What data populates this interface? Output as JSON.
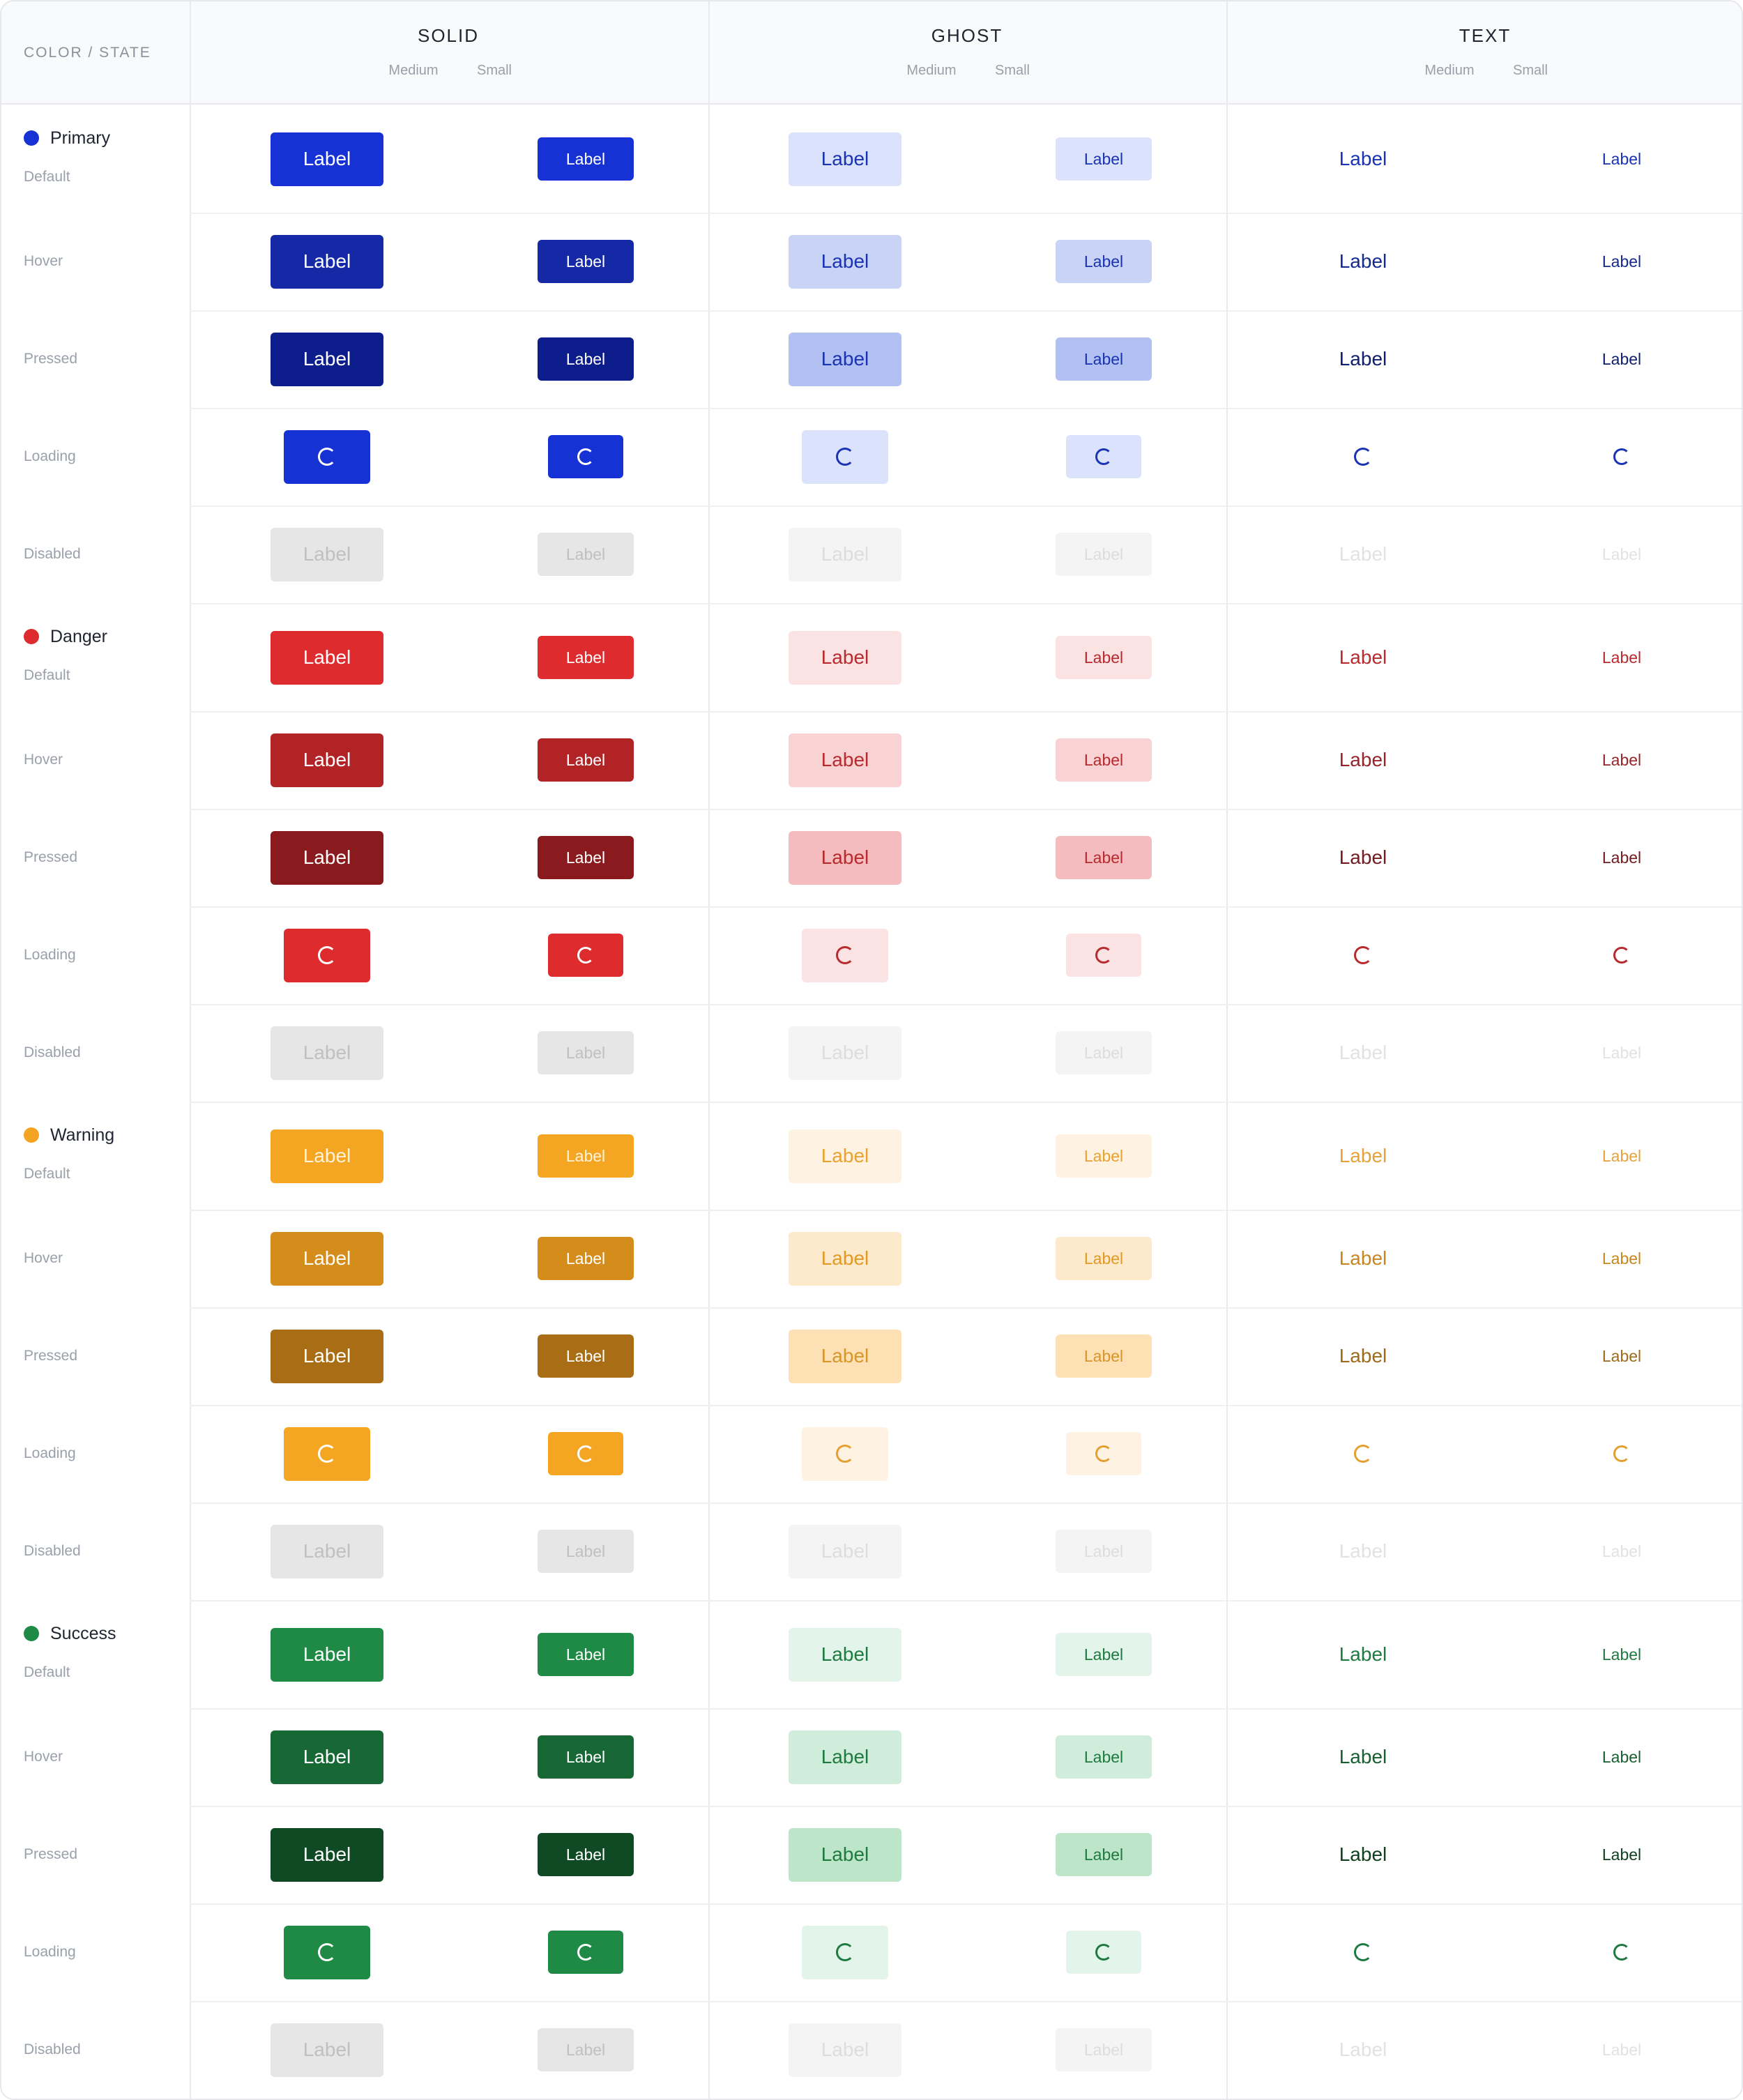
{
  "header": {
    "corner_label": "COLOR / STATE",
    "groups": [
      {
        "title": "SOLID",
        "sizes": [
          "Medium",
          "Small"
        ]
      },
      {
        "title": "GHOST",
        "sizes": [
          "Medium",
          "Small"
        ]
      },
      {
        "title": "TEXT",
        "sizes": [
          "Medium",
          "Small"
        ]
      }
    ]
  },
  "button_label": "Label",
  "states": [
    "Default",
    "Hover",
    "Pressed",
    "Loading",
    "Disabled"
  ],
  "colors": [
    {
      "name": "Primary",
      "dot": "#1632d4",
      "solid_bg": [
        "#1632d4",
        "#1529a6",
        "#0d1d8c",
        "#1632d4",
        "#e6e6e6"
      ],
      "solid_fg": [
        "#ffffff",
        "#ffffff",
        "#ffffff",
        "#ffffff",
        "#c0c0c0"
      ],
      "ghost_bg": [
        "#dbe2fb",
        "#c9d3f6",
        "#b2c1f2",
        "#dbe2fb",
        "#f4f4f4"
      ],
      "ghost_fg": [
        "#1a33b4",
        "#1a33b4",
        "#1a33b4",
        "#1a33b4",
        "#dddddd"
      ],
      "text_fg": [
        "#1a33b4",
        "#152a8f",
        "#0f1f6e",
        "#1a33b4",
        "#e2e2e2"
      ]
    },
    {
      "name": "Danger",
      "dot": "#de2b2e",
      "solid_bg": [
        "#de2b2e",
        "#b22326",
        "#8a1a1d",
        "#de2b2e",
        "#e6e6e6"
      ],
      "solid_fg": [
        "#ffffff",
        "#ffffff",
        "#ffffff",
        "#ffffff",
        "#c0c0c0"
      ],
      "ghost_bg": [
        "#fbe3e3",
        "#f9d2d3",
        "#f4bcbe",
        "#fbe3e3",
        "#f4f4f4"
      ],
      "ghost_fg": [
        "#b82a2d",
        "#b82a2d",
        "#b82a2d",
        "#b82a2d",
        "#dddddd"
      ],
      "text_fg": [
        "#b82a2d",
        "#97242a",
        "#731b1f",
        "#b82a2d",
        "#e2e2e2"
      ]
    },
    {
      "name": "Warning",
      "dot": "#f4a322",
      "solid_bg": [
        "#f4a623",
        "#d48c1b",
        "#a86d15",
        "#f4a623",
        "#e6e6e6"
      ],
      "solid_fg": [
        "#fff3dc",
        "#ffffff",
        "#ffffff",
        "#ffffff",
        "#c0c0c0"
      ],
      "ghost_bg": [
        "#fef3e3",
        "#fde9cc",
        "#fde0b4",
        "#fef3e3",
        "#f4f4f4"
      ],
      "ghost_fg": [
        "#eaa12f",
        "#e29a25",
        "#d8952a",
        "#e3a031",
        "#dddddd"
      ],
      "text_fg": [
        "#e6a33a",
        "#c8871e",
        "#9c6a1b",
        "#e3a031",
        "#e2e2e2"
      ]
    },
    {
      "name": "Success",
      "dot": "#1f8a45",
      "solid_bg": [
        "#1f8a45",
        "#186836",
        "#0f4a25",
        "#1f8a45",
        "#e6e6e6"
      ],
      "solid_fg": [
        "#ffffff",
        "#ffffff",
        "#ffffff",
        "#ffffff",
        "#c0c0c0"
      ],
      "ghost_bg": [
        "#e3f4ea",
        "#d0eddb",
        "#bde5c9",
        "#e3f4ea",
        "#f4f4f4"
      ],
      "ghost_fg": [
        "#1f7a3f",
        "#1f7a3f",
        "#1f7a3f",
        "#1f7a3f",
        "#dddddd"
      ],
      "text_fg": [
        "#1f7a3f",
        "#185f31",
        "#10411f",
        "#1f7a3f",
        "#e2e2e2"
      ]
    }
  ]
}
